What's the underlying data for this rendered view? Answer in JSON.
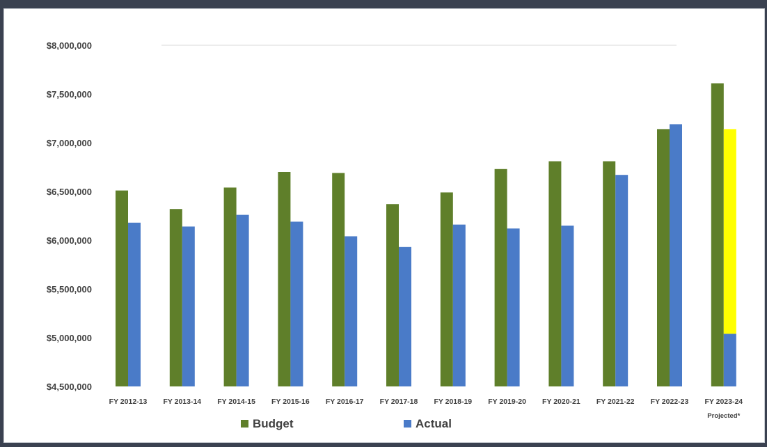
{
  "chart_data": {
    "type": "bar",
    "categories": [
      "FY 2012-13",
      "FY 2013-14",
      "FY 2014-15",
      "FY 2015-16",
      "FY 2016-17",
      "FY 2017-18",
      "FY 2018-19",
      "FY 2019-20",
      "FY 2020-21",
      "FY 2021-22",
      "FY 2022-23",
      "FY 2023-24"
    ],
    "category_notes": [
      "",
      "",
      "",
      "",
      "",
      "",
      "",
      "",
      "",
      "",
      "",
      "Projected*"
    ],
    "y_tick_labels": [
      "$4,500,000",
      "$5,000,000",
      "$5,500,000",
      "$6,000,000",
      "$6,500,000",
      "$7,000,000",
      "$7,500,000",
      "$8,000,000"
    ],
    "y_ticks": [
      4500000,
      5000000,
      5500000,
      6000000,
      6500000,
      7000000,
      7500000,
      8000000
    ],
    "ylim": [
      4500000,
      8000000
    ],
    "series": [
      {
        "name": "Budget",
        "color": "#5f7f2a",
        "values": [
          6510000,
          6320000,
          6540000,
          6700000,
          6690000,
          6370000,
          6490000,
          6730000,
          6810000,
          6810000,
          7140000,
          7610000
        ]
      },
      {
        "name": "Actual",
        "color": "#4a7bc8",
        "values": [
          6180000,
          6140000,
          6260000,
          6190000,
          6040000,
          5930000,
          6160000,
          6120000,
          6150000,
          6670000,
          7190000,
          5040000
        ]
      }
    ],
    "projection_segment": {
      "category": "FY 2023-24",
      "from": 5040000,
      "to": 7140000,
      "color": "#ffff00"
    },
    "legend_position": "bottom",
    "grid": false
  }
}
